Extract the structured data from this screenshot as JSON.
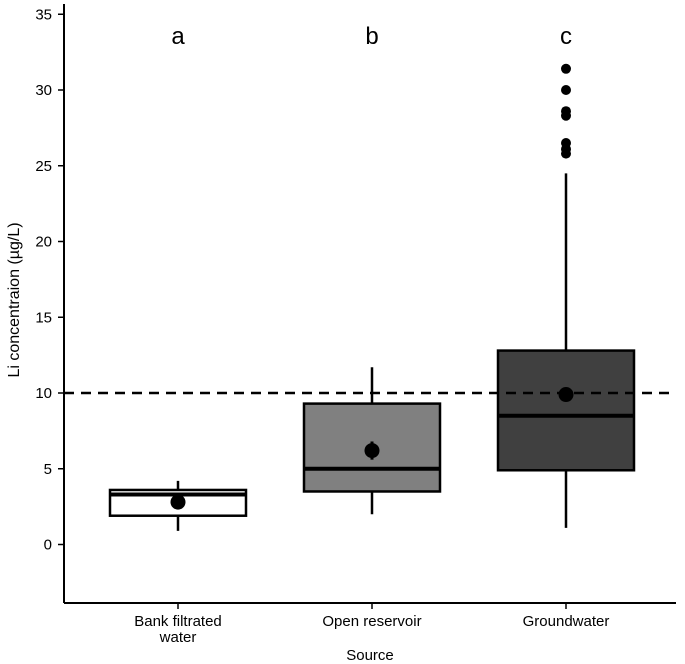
{
  "chart_data": {
    "type": "box",
    "xlabel": "Source",
    "ylabel": "Li concentraion (µg/L)",
    "ylim": [
      -4,
      35.5
    ],
    "yticks": [
      0,
      5,
      10,
      15,
      20,
      25,
      30,
      35
    ],
    "reference_line": {
      "value": 10,
      "style": "dashed"
    },
    "categories": [
      {
        "label_lines": [
          "Bank filtrated",
          "water"
        ],
        "letter": "a",
        "fill": "#ffffff",
        "whisker_low": 0.9,
        "q1": 1.9,
        "median": 3.3,
        "q3": 3.6,
        "whisker_high": 4.2,
        "mean": 2.8,
        "mean_err": [
          2.5,
          3.1
        ],
        "outliers": []
      },
      {
        "label_lines": [
          "Open reservoir"
        ],
        "letter": "b",
        "fill": "#808080",
        "whisker_low": 2.0,
        "q1": 3.5,
        "median": 5.0,
        "q3": 9.3,
        "whisker_high": 11.7,
        "mean": 6.2,
        "mean_err": [
          5.6,
          6.8
        ],
        "outliers": []
      },
      {
        "label_lines": [
          "Groundwater"
        ],
        "letter": "c",
        "fill": "#404040",
        "whisker_low": 1.1,
        "q1": 4.9,
        "median": 8.5,
        "q3": 12.8,
        "whisker_high": 24.5,
        "mean": 9.9,
        "mean_err": [
          9.5,
          10.3
        ],
        "outliers": [
          25.8,
          26.1,
          26.5,
          28.3,
          28.6,
          30.0,
          31.4
        ]
      }
    ]
  }
}
